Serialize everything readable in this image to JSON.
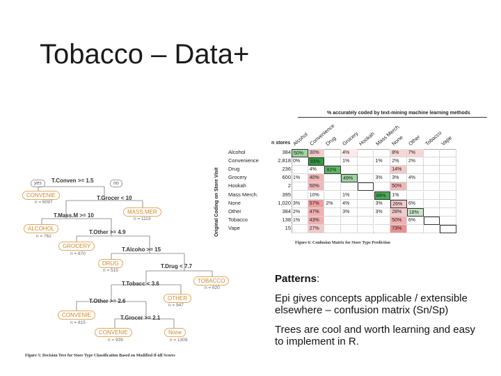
{
  "slide": {
    "title": "Tobacco – Data+"
  },
  "matrix": {
    "title": "% accurately coded by text-mining machine learning methods",
    "n_header": "n stores",
    "y_axis": "Original Coding on Store Visit",
    "caption": "Figure 6: Confusion Matrix for Store Type Prediction",
    "columns": [
      "Alcohol",
      "Convenience",
      "Drug",
      "Grocery",
      "Hookah",
      "Mass Merch.",
      "None",
      "Other",
      "Tobacco",
      "Vape"
    ],
    "rows": [
      {
        "label": "Alcohol",
        "n": "384",
        "cells": [
          "50%",
          "30%",
          "",
          "4%",
          "",
          "",
          "8%",
          "7%",
          "",
          ""
        ]
      },
      {
        "label": "Convenience",
        "n": "2,818",
        "cells": [
          "0%",
          "93%",
          "",
          "1%",
          "",
          "1%",
          "2%",
          "2%",
          "",
          ""
        ]
      },
      {
        "label": "Drug",
        "n": "236",
        "cells": [
          "",
          "4%",
          "82%",
          "",
          "",
          "",
          "14%",
          "",
          "",
          ""
        ]
      },
      {
        "label": "Grocery",
        "n": "600",
        "cells": [
          "1%",
          "40%",
          "",
          "49%",
          "",
          "3%",
          "3%",
          "4%",
          "",
          ""
        ]
      },
      {
        "label": "Hookah",
        "n": "2",
        "cells": [
          "",
          "50%",
          "",
          "",
          "",
          "",
          "50%",
          "",
          "",
          ""
        ]
      },
      {
        "label": "Mass Merch.",
        "n": "395",
        "cells": [
          "",
          "10%",
          "",
          "1%",
          "",
          "88%",
          "1%",
          "",
          "",
          ""
        ]
      },
      {
        "label": "None",
        "n": "1,020",
        "cells": [
          "3%",
          "57%",
          "2%",
          "4%",
          "",
          "3%",
          "26%",
          "6%",
          "",
          ""
        ]
      },
      {
        "label": "Other",
        "n": "384",
        "cells": [
          "2%",
          "47%",
          "",
          "3%",
          "",
          "3%",
          "28%",
          "18%",
          "",
          ""
        ]
      },
      {
        "label": "Tobacco",
        "n": "138",
        "cells": [
          "1%",
          "43%",
          "",
          "",
          "",
          "",
          "50%",
          "6%",
          "",
          ""
        ]
      },
      {
        "label": "Vape",
        "n": "15",
        "cells": [
          "",
          "27%",
          "",
          "",
          "",
          "",
          "73%",
          "",
          "",
          ""
        ]
      }
    ],
    "cell_colors": [
      [
        "#9fd4a0",
        "#f3c9c9",
        "",
        "#fbeaea",
        "",
        "",
        "#f7d6d6",
        "#f7d6d6",
        "",
        ""
      ],
      [
        "",
        "#2e9a3a",
        "",
        "",
        "",
        "",
        "",
        "",
        "",
        ""
      ],
      [
        "",
        "",
        "#5cb865",
        "",
        "",
        "",
        "#f3c9c9",
        "",
        "",
        ""
      ],
      [
        "",
        "#f0b8b8",
        "",
        "#9fd4a0",
        "",
        "",
        "",
        "",
        "",
        ""
      ],
      [
        "",
        "#f0b8b8",
        "",
        "",
        "",
        "",
        "#f0b8b8",
        "",
        "",
        ""
      ],
      [
        "",
        "",
        "",
        "",
        "",
        "#4aaa55",
        "",
        "",
        "",
        ""
      ],
      [
        "",
        "#ee9f9f",
        "",
        "",
        "",
        "",
        "#f3c9c9",
        "",
        "",
        ""
      ],
      [
        "",
        "#f0b0b0",
        "",
        "",
        "",
        "",
        "#f3c9c9",
        "#c9e6c9",
        "",
        ""
      ],
      [
        "",
        "#f0b0b0",
        "",
        "",
        "",
        "",
        "#f0b0b0",
        "",
        "",
        ""
      ],
      [
        "",
        "#f3c9c9",
        "",
        "",
        "",
        "",
        "#ec9090",
        "",
        "",
        ""
      ]
    ]
  },
  "tree": {
    "caption": "Figure 5: Decision Tree for Store Type Classification Based on Modified tf-idf Scores",
    "yes": "yes",
    "no": "no",
    "splits": [
      "T.Conven >= 1.5",
      "T.Grocer < 10",
      "T.Mass.M >= 10",
      "T.Other >= 4.9",
      "T.Alcoho >= 15",
      "T.Drug < 7.7",
      "T.Tobacc < 3.6",
      "T.Other >= 2.6",
      "T.Grocer >= 2.1"
    ],
    "leaves": [
      {
        "label": "CONVENIE",
        "n": "n = 6097"
      },
      {
        "label": "MASS.MER",
        "n": "n = 1113"
      },
      {
        "label": "ALCOHOL",
        "n": "n = 762"
      },
      {
        "label": "GROCERY",
        "n": "n = 870"
      },
      {
        "label": "DRUG",
        "n": "n = 515"
      },
      {
        "label": "TOBACCO",
        "n": "n = 620"
      },
      {
        "label": "OTHER",
        "n": "n = 947"
      },
      {
        "label": "CONVENIE",
        "n": "n = 815"
      },
      {
        "label": "CONVENIE",
        "n": "n = 939"
      },
      {
        "label": "None",
        "n": "n = 1309"
      }
    ]
  },
  "notes": {
    "heading": "Patterns",
    "heading_suffix": ":",
    "p1": "Epi gives concepts applicable / extensible elsewhere – confusion matrix (Sn/Sp)",
    "p2": "Trees are cool and worth learning and easy to implement in R."
  }
}
